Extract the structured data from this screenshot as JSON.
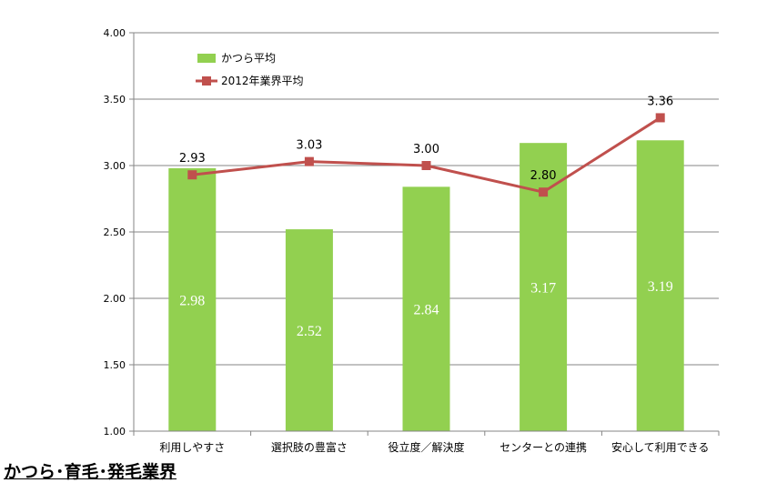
{
  "chart_data": {
    "type": "bar",
    "categories": [
      "利用しやすさ",
      "選択肢の豊富さ",
      "役立度／解決度",
      "センターとの連携",
      "安心して利用できる"
    ],
    "series": [
      {
        "name": "かつら平均",
        "kind": "bar",
        "values": [
          2.98,
          2.52,
          2.84,
          3.17,
          3.19
        ],
        "labels": [
          "2.98",
          "2.52",
          "2.84",
          "3.17",
          "3.19"
        ]
      },
      {
        "name": "2012年業界平均",
        "kind": "line",
        "values": [
          2.93,
          3.03,
          3.0,
          2.8,
          3.36
        ],
        "labels": [
          "2.93",
          "3.03",
          "3.00",
          "2.80",
          "3.36"
        ]
      }
    ],
    "ylim": [
      1.0,
      4.0
    ],
    "yticks": [
      "1.00",
      "1.50",
      "2.00",
      "2.50",
      "3.00",
      "3.50",
      "4.00"
    ],
    "grid": true,
    "legend_position": "top-left",
    "colors": {
      "bar": "#92D050",
      "line": "#C0504D",
      "grid": "#868686",
      "axis": "#868686"
    }
  },
  "caption": "かつら･育毛･発毛業界"
}
